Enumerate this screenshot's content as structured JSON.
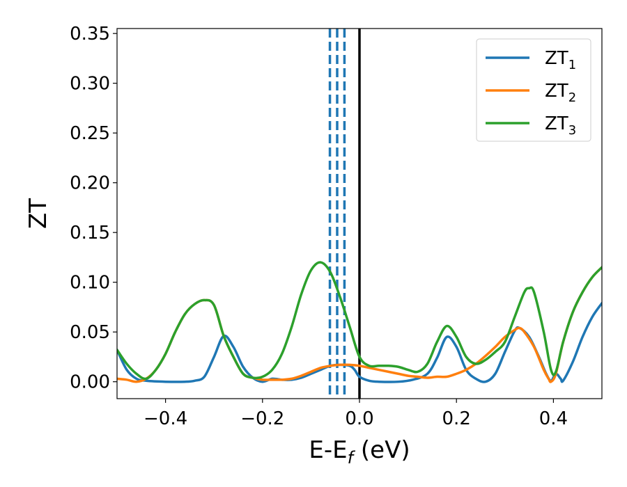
{
  "chart_data": {
    "type": "line",
    "title": "",
    "xlabel": "E-E",
    "xlabel_subscript": "f",
    "xlabel_unit": " (eV)",
    "ylabel": "ZT",
    "xlim": [
      -0.5,
      0.5
    ],
    "ylim": [
      -0.017,
      0.355
    ],
    "x_ticks": [
      -0.4,
      -0.2,
      0.0,
      0.2,
      0.4
    ],
    "x_tick_labels": [
      "−0.4",
      "−0.2",
      "0.0",
      "0.2",
      "0.4"
    ],
    "y_ticks": [
      0.0,
      0.05,
      0.1,
      0.15,
      0.2,
      0.25,
      0.3,
      0.35
    ],
    "y_tick_labels": [
      "0.00",
      "0.05",
      "0.10",
      "0.15",
      "0.20",
      "0.25",
      "0.30",
      "0.35"
    ],
    "grid": false,
    "legend_position": "top-right",
    "colors": {
      "zt1": "#1f77b4",
      "zt2": "#ff7f0e",
      "zt3": "#2ca02c",
      "fermi": "#000000"
    },
    "vertical_lines": [
      {
        "x": 0.0,
        "style": "solid",
        "color": "#000000"
      },
      {
        "x": -0.061,
        "style": "dashed",
        "color": "#1f77b4"
      },
      {
        "x": -0.046,
        "style": "dashed",
        "color": "#1f77b4"
      },
      {
        "x": -0.031,
        "style": "dashed",
        "color": "#1f77b4"
      }
    ],
    "series": [
      {
        "name": "ZT",
        "subscript": "1",
        "key": "zt1",
        "points": [
          [
            -0.5,
            0.032
          ],
          [
            -0.48,
            0.012
          ],
          [
            -0.46,
            0.003
          ],
          [
            -0.44,
            0.001
          ],
          [
            -0.4,
            0.0
          ],
          [
            -0.36,
            0.0
          ],
          [
            -0.34,
            0.001
          ],
          [
            -0.32,
            0.005
          ],
          [
            -0.3,
            0.025
          ],
          [
            -0.28,
            0.046
          ],
          [
            -0.26,
            0.035
          ],
          [
            -0.24,
            0.015
          ],
          [
            -0.22,
            0.004
          ],
          [
            -0.2,
            0.0
          ],
          [
            -0.18,
            0.003
          ],
          [
            -0.16,
            0.002
          ],
          [
            -0.14,
            0.002
          ],
          [
            -0.12,
            0.004
          ],
          [
            -0.1,
            0.008
          ],
          [
            -0.08,
            0.012
          ],
          [
            -0.06,
            0.016
          ],
          [
            -0.04,
            0.017
          ],
          [
            -0.02,
            0.016
          ],
          [
            -0.01,
            0.012
          ],
          [
            0.0,
            0.005
          ],
          [
            0.02,
            0.001
          ],
          [
            0.04,
            0.0
          ],
          [
            0.08,
            0.0
          ],
          [
            0.11,
            0.002
          ],
          [
            0.14,
            0.008
          ],
          [
            0.16,
            0.024
          ],
          [
            0.18,
            0.045
          ],
          [
            0.2,
            0.035
          ],
          [
            0.22,
            0.012
          ],
          [
            0.24,
            0.003
          ],
          [
            0.26,
            0.0
          ],
          [
            0.28,
            0.008
          ],
          [
            0.3,
            0.03
          ],
          [
            0.32,
            0.051
          ],
          [
            0.33,
            0.054
          ],
          [
            0.35,
            0.045
          ],
          [
            0.37,
            0.025
          ],
          [
            0.385,
            0.008
          ],
          [
            0.395,
            0.001
          ],
          [
            0.405,
            0.008
          ],
          [
            0.415,
            0.003
          ],
          [
            0.42,
            0.001
          ],
          [
            0.44,
            0.02
          ],
          [
            0.46,
            0.045
          ],
          [
            0.48,
            0.065
          ],
          [
            0.5,
            0.079
          ]
        ]
      },
      {
        "name": "ZT",
        "subscript": "2",
        "key": "zt2",
        "points": [
          [
            -0.5,
            0.003
          ],
          [
            -0.48,
            0.002
          ],
          [
            -0.46,
            0.0
          ],
          [
            -0.44,
            0.003
          ],
          [
            -0.42,
            0.012
          ],
          [
            -0.4,
            0.028
          ],
          [
            -0.38,
            0.05
          ],
          [
            -0.36,
            0.068
          ],
          [
            -0.34,
            0.078
          ],
          [
            -0.32,
            0.082
          ],
          [
            -0.3,
            0.077
          ],
          [
            -0.28,
            0.046
          ],
          [
            -0.26,
            0.025
          ],
          [
            -0.24,
            0.008
          ],
          [
            -0.22,
            0.004
          ],
          [
            -0.2,
            0.002
          ],
          [
            -0.18,
            0.002
          ],
          [
            -0.16,
            0.002
          ],
          [
            -0.14,
            0.003
          ],
          [
            -0.12,
            0.006
          ],
          [
            -0.1,
            0.01
          ],
          [
            -0.08,
            0.014
          ],
          [
            -0.06,
            0.016
          ],
          [
            -0.04,
            0.017
          ],
          [
            -0.02,
            0.017
          ],
          [
            0.0,
            0.016
          ],
          [
            0.02,
            0.014
          ],
          [
            0.04,
            0.012
          ],
          [
            0.06,
            0.01
          ],
          [
            0.08,
            0.008
          ],
          [
            0.1,
            0.006
          ],
          [
            0.12,
            0.005
          ],
          [
            0.14,
            0.004
          ],
          [
            0.16,
            0.005
          ],
          [
            0.18,
            0.005
          ],
          [
            0.2,
            0.008
          ],
          [
            0.22,
            0.012
          ],
          [
            0.24,
            0.018
          ],
          [
            0.26,
            0.026
          ],
          [
            0.28,
            0.035
          ],
          [
            0.3,
            0.045
          ],
          [
            0.32,
            0.052
          ],
          [
            0.33,
            0.054
          ],
          [
            0.34,
            0.05
          ],
          [
            0.36,
            0.035
          ],
          [
            0.38,
            0.012
          ],
          [
            0.39,
            0.003
          ],
          [
            0.395,
            0.0
          ],
          [
            0.405,
            0.008
          ],
          [
            0.42,
            0.04
          ],
          [
            0.44,
            0.07
          ],
          [
            0.46,
            0.09
          ],
          [
            0.48,
            0.105
          ],
          [
            0.5,
            0.115
          ]
        ]
      },
      {
        "name": "ZT",
        "subscript": "3",
        "key": "zt3",
        "points": [
          [
            -0.5,
            0.032
          ],
          [
            -0.48,
            0.018
          ],
          [
            -0.46,
            0.008
          ],
          [
            -0.44,
            0.003
          ],
          [
            -0.42,
            0.012
          ],
          [
            -0.4,
            0.028
          ],
          [
            -0.38,
            0.05
          ],
          [
            -0.36,
            0.068
          ],
          [
            -0.34,
            0.078
          ],
          [
            -0.32,
            0.082
          ],
          [
            -0.3,
            0.077
          ],
          [
            -0.28,
            0.046
          ],
          [
            -0.26,
            0.025
          ],
          [
            -0.24,
            0.008
          ],
          [
            -0.22,
            0.004
          ],
          [
            -0.2,
            0.005
          ],
          [
            -0.18,
            0.012
          ],
          [
            -0.16,
            0.028
          ],
          [
            -0.14,
            0.055
          ],
          [
            -0.12,
            0.088
          ],
          [
            -0.1,
            0.112
          ],
          [
            -0.08,
            0.12
          ],
          [
            -0.06,
            0.11
          ],
          [
            -0.04,
            0.085
          ],
          [
            -0.02,
            0.055
          ],
          [
            0.0,
            0.025
          ],
          [
            0.02,
            0.016
          ],
          [
            0.04,
            0.016
          ],
          [
            0.06,
            0.016
          ],
          [
            0.08,
            0.015
          ],
          [
            0.1,
            0.012
          ],
          [
            0.12,
            0.01
          ],
          [
            0.14,
            0.018
          ],
          [
            0.16,
            0.04
          ],
          [
            0.18,
            0.056
          ],
          [
            0.2,
            0.045
          ],
          [
            0.22,
            0.025
          ],
          [
            0.24,
            0.018
          ],
          [
            0.26,
            0.022
          ],
          [
            0.28,
            0.03
          ],
          [
            0.3,
            0.04
          ],
          [
            0.32,
            0.065
          ],
          [
            0.34,
            0.09
          ],
          [
            0.35,
            0.094
          ],
          [
            0.36,
            0.09
          ],
          [
            0.38,
            0.05
          ],
          [
            0.395,
            0.012
          ],
          [
            0.405,
            0.01
          ],
          [
            0.42,
            0.04
          ],
          [
            0.44,
            0.07
          ],
          [
            0.46,
            0.09
          ],
          [
            0.48,
            0.105
          ],
          [
            0.5,
            0.115
          ]
        ]
      }
    ]
  }
}
